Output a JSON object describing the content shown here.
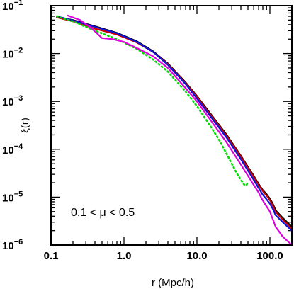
{
  "chart_data": {
    "type": "line",
    "xscale": "log",
    "yscale": "log",
    "xlim": [
      0.1,
      200
    ],
    "ylim": [
      1e-06,
      0.1
    ],
    "xlabel": "r (Mpc/h)",
    "ylabel": "ξ(r)",
    "annotation": "0.1 < μ < 0.5",
    "grid": false,
    "x_tick_labels": [
      {
        "value": 0.1,
        "label": "0.1"
      },
      {
        "value": 1,
        "label": "1.0"
      },
      {
        "value": 10,
        "label": "10.0"
      },
      {
        "value": 100,
        "label": "100.0"
      }
    ],
    "y_tick_labels": [
      {
        "exp": -6,
        "base": "10",
        "sup": "−6"
      },
      {
        "exp": -5,
        "base": "10",
        "sup": "−5"
      },
      {
        "exp": -4,
        "base": "10",
        "sup": "−4"
      },
      {
        "exp": -3,
        "base": "10",
        "sup": "−3"
      },
      {
        "exp": -2,
        "base": "10",
        "sup": "−2"
      },
      {
        "exp": -1,
        "base": "10",
        "sup": "−1"
      }
    ],
    "series": [
      {
        "color": "#000000",
        "dash": "solid",
        "x": [
          0.12,
          0.2,
          0.4,
          0.8,
          1.5,
          2.5,
          4,
          7,
          10,
          15,
          25,
          40,
          60,
          70,
          80,
          90,
          100,
          110,
          120,
          150,
          200
        ],
        "y": [
          0.058,
          0.05,
          0.037,
          0.027,
          0.018,
          0.0112,
          0.0062,
          0.0025,
          0.0013,
          0.00058,
          0.00021,
          7.3e-05,
          2.8e-05,
          1.9e-05,
          1.4e-05,
          1.15e-05,
          9.3e-06,
          7.2e-06,
          5.3e-06,
          3.7e-06,
          2.4e-06
        ]
      },
      {
        "color": "#cc0000",
        "dash": "solid",
        "x": [
          0.12,
          0.2,
          0.4,
          0.8,
          1.5,
          2.5,
          4,
          7,
          10,
          15,
          25,
          40,
          60,
          70,
          80,
          90,
          100,
          110,
          120,
          150,
          200
        ],
        "y": [
          0.057,
          0.047,
          0.033,
          0.025,
          0.017,
          0.0108,
          0.006,
          0.0024,
          0.00125,
          0.00055,
          0.0002,
          7e-05,
          2.65e-05,
          1.8e-05,
          1.33e-05,
          1.08e-05,
          8.6e-06,
          6.6e-06,
          4.9e-06,
          3.4e-06,
          2.2e-06
        ]
      },
      {
        "color": "#1010dd",
        "dash": "solid",
        "x": [
          0.12,
          0.2,
          0.4,
          0.8,
          1.5,
          2.5,
          4,
          7,
          10,
          15,
          25,
          40,
          60,
          70,
          80,
          90,
          100,
          110,
          120,
          150,
          200
        ],
        "y": [
          0.06,
          0.049,
          0.036,
          0.0265,
          0.0175,
          0.0108,
          0.0058,
          0.0023,
          0.00115,
          0.00051,
          0.000182,
          6.2e-05,
          2.3e-05,
          1.55e-05,
          1.12e-05,
          9e-06,
          7.3e-06,
          5.6e-06,
          4.2e-06,
          3e-06,
          2e-06
        ]
      },
      {
        "color": "#00dd00",
        "dash": "dotted",
        "x": [
          0.12,
          0.2,
          0.4,
          0.8,
          1.5,
          2.5,
          4,
          7,
          10,
          15,
          20,
          25,
          30,
          35,
          40,
          44,
          47,
          50
        ],
        "y": [
          0.06,
          0.047,
          0.03,
          0.02,
          0.0125,
          0.0075,
          0.0042,
          0.0016,
          0.0008,
          0.00032,
          0.00016,
          8.5e-05,
          5e-05,
          3.2e-05,
          2.3e-05,
          1.85e-05,
          1.75e-05,
          2e-05
        ]
      },
      {
        "color": "#dd00dd",
        "dash": "solid",
        "x": [
          0.17,
          0.25,
          0.35,
          0.5,
          0.7,
          1.0,
          1.5,
          2.5,
          4,
          7,
          10,
          15,
          25,
          40,
          60,
          70,
          80,
          90,
          100,
          110,
          120,
          150,
          200
        ],
        "y": [
          0.062,
          0.05,
          0.035,
          0.021,
          0.02,
          0.0175,
          0.013,
          0.0088,
          0.005,
          0.0019,
          0.001,
          0.00043,
          0.000145,
          4.8e-05,
          1.8e-05,
          1.25e-05,
          8.5e-06,
          6.4e-06,
          5e-06,
          3.4e-06,
          2.4e-06,
          1.5e-06,
          1e-06
        ]
      }
    ]
  }
}
